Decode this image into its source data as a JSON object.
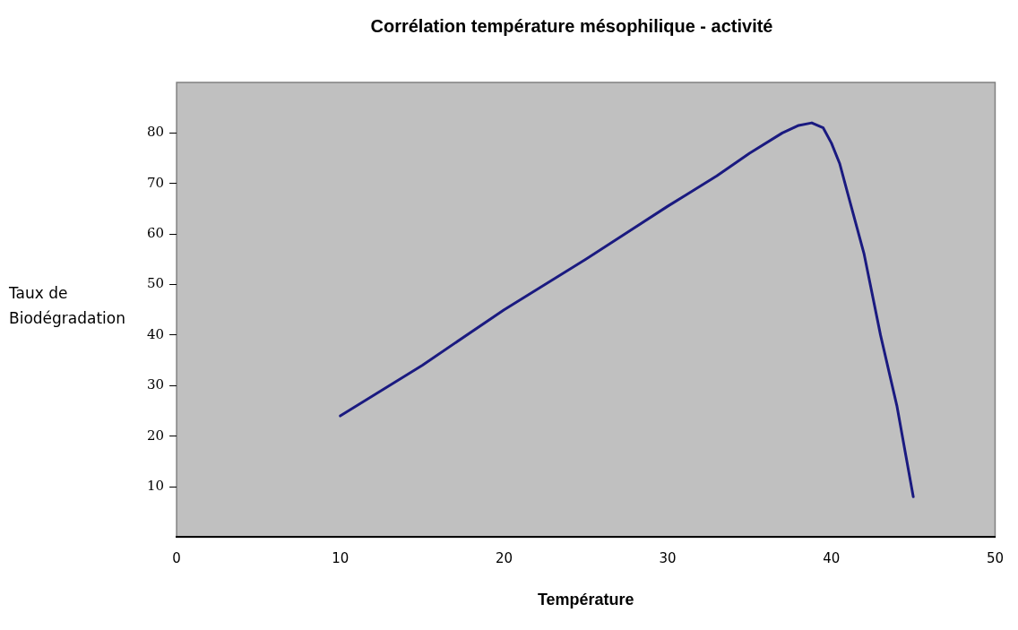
{
  "chart_data": {
    "type": "line",
    "title": "Corrélation température mésophilique - activité",
    "xlabel": "Température",
    "ylabel": "Taux de Biodégradation",
    "x": [
      10,
      15,
      20,
      25,
      30,
      33,
      35,
      37,
      38,
      38.8,
      39.5,
      40,
      40.5,
      41,
      42,
      43,
      44,
      45
    ],
    "series": [
      {
        "color": "#1a1a80",
        "values": [
          24,
          34,
          45,
          55,
          65.5,
          71.5,
          76,
          80,
          81.5,
          82,
          81,
          78,
          74,
          68,
          56,
          40,
          26,
          8
        ]
      }
    ],
    "xlim": [
      0,
      50
    ],
    "xticks": [
      0,
      10,
      20,
      30,
      40,
      50
    ],
    "ylim": [
      0,
      90
    ],
    "yticks": [
      10,
      20,
      30,
      40,
      50,
      60,
      70,
      80
    ],
    "grid": false,
    "legend": false,
    "marker": "none",
    "line_style": "solid"
  }
}
